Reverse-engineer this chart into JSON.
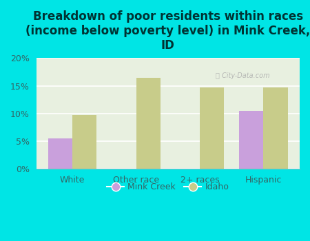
{
  "title": "Breakdown of poor residents within races\n(income below poverty level) in Mink Creek,\nID",
  "categories": [
    "White",
    "Other race",
    "2+ races",
    "Hispanic"
  ],
  "mink_creek": [
    5.5,
    0,
    0,
    10.5
  ],
  "idaho": [
    9.7,
    16.5,
    14.7,
    14.7
  ],
  "mink_creek_color": "#c9a0dc",
  "idaho_color": "#c8cc8a",
  "background_outer": "#00e5e5",
  "background_inner": "#e8f0e0",
  "ylim": [
    0,
    20
  ],
  "yticks": [
    0,
    5,
    10,
    15,
    20
  ],
  "ytick_labels": [
    "0%",
    "5%",
    "10%",
    "15%",
    "20%"
  ],
  "title_fontsize": 12,
  "title_color": "#003333",
  "bar_width": 0.38,
  "legend_labels": [
    "Mink Creek",
    "Idaho"
  ],
  "tick_label_color": "#336666",
  "watermark": "City-Data.com"
}
